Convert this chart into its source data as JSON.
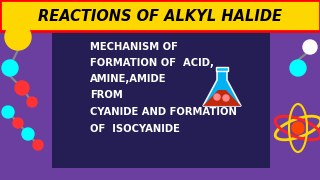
{
  "title": "REACTIONS OF ALKYL HALIDE",
  "title_bg": "#FFD700",
  "title_color": "#000000",
  "title_border": "#FF0000",
  "main_bg": "#6B3FA0",
  "center_bg": "#1A1A4A",
  "body_lines": [
    "MECHANISM OF",
    "FORMATION OF  ACID,",
    "AMINE,AMIDE",
    "FROM",
    "CYANIDE AND FORMATION",
    "OF  ISOCYANIDE"
  ],
  "body_color": "#FFFFFF",
  "mol_yellow": "#FFD700",
  "mol_cyan": "#00FFFF",
  "mol_red": "#FF3333",
  "mol_orange": "#FF8C00",
  "mol_white": "#FFFFFF",
  "mol_gray": "#888888",
  "flask_body": "#00BFFF",
  "flask_liquid": "#CC2200",
  "flask_bubbles": "#FF8888",
  "atom_orbit1": "#FFD700",
  "atom_orbit2": "#FF2222",
  "atom_nucleus": "#FF4500"
}
